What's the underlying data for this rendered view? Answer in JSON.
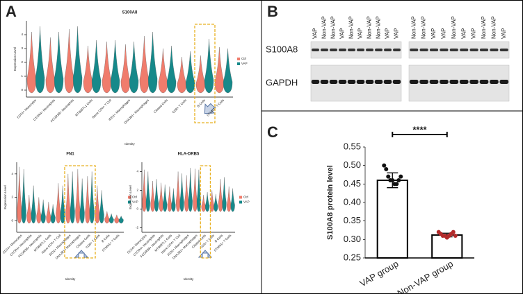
{
  "panel_labels": [
    "A",
    "B",
    "C"
  ],
  "blot": {
    "rows": [
      "S100A8",
      "GAPDH"
    ],
    "lanes": [
      [
        "VAP",
        "Non-VAP",
        "Non-VAP",
        "VAP",
        "Non-VAP",
        "VAP",
        "Non-VAP",
        "Non-VAP",
        "VAP",
        "VAP"
      ],
      [
        "Non-VAP",
        "Non-VAP",
        "VAP",
        "VAP",
        "Non-VAP",
        "VAP",
        "VAP",
        "Non-VAP",
        "Non-VAP",
        "VAP"
      ]
    ]
  },
  "chart_data": [
    {
      "type": "violin",
      "title": "S100A8",
      "xlabel": "Identity",
      "ylabel": "Expression Level",
      "categories": [
        "CD14+ Monocytes",
        "CXCR4+ Neutrophils",
        "FCGR3B+ Neutrophils",
        "MT998TL1 Cells",
        "Naive CD4+ T Cell",
        "IDO1+ Macrophages",
        "DNAJB1+ Macrophages",
        "Ciliated Cells",
        "CD8+ T Cells",
        "B Cells",
        "STMN1+ T Cells"
      ],
      "series": [
        {
          "name": "Ctrl",
          "color": "#f07c6c",
          "values": [
            4.2,
            3.8,
            4.4,
            3.2,
            3.5,
            3.3,
            3.9,
            3.0,
            2.4,
            2.5,
            3.1
          ]
        },
        {
          "name": "VAP",
          "color": "#16898a",
          "values": [
            4.6,
            4.2,
            4.6,
            3.6,
            3.6,
            3.5,
            4.2,
            3.2,
            2.8,
            3.7,
            3.0
          ]
        }
      ],
      "ylim": [
        -0.5,
        5
      ],
      "yticks": [
        0,
        1,
        2,
        3,
        4
      ]
    },
    {
      "type": "violin",
      "title": "FN1",
      "xlabel": "Identity",
      "ylabel": "Expression Level",
      "categories": [
        "CD14+ Monocytes",
        "CXCR4+ Neutrophils",
        "FCGR3B+ Neutrophils",
        "MT998TL1 Cells",
        "Naive CD4+ T Cell",
        "IDO1+ Macrophages",
        "DNAJB1+ Macrophages",
        "Ciliated Cells",
        "CD8+ T Cells",
        "B Cells",
        "STMN1+ T Cells"
      ],
      "series": [
        {
          "name": "Ctrl",
          "color": "#f07c6c",
          "values": [
            4.6,
            2.2,
            2.0,
            1.6,
            3.2,
            4.0,
            4.4,
            3.8,
            3.0,
            0.8,
            0.5
          ]
        },
        {
          "name": "VAP",
          "color": "#16898a",
          "values": [
            4.4,
            3.0,
            1.8,
            1.4,
            3.0,
            4.2,
            3.6,
            4.2,
            2.6,
            0.6,
            0.4
          ]
        }
      ],
      "ylim": [
        -1,
        5
      ],
      "yticks": [
        0,
        2,
        4
      ]
    },
    {
      "type": "violin",
      "title": "HLA-DRB5",
      "xlabel": "Identity",
      "ylabel": "Expression Level",
      "categories": [
        "CD14+ Monocytes",
        "CXCR4+ Neutrophils",
        "FCGR3B+ Neutrophils",
        "MT998TL1 Cells",
        "Naive CD4+ T Cell",
        "IDO1+ Macrophages",
        "DNAJB1+ Macrophages",
        "Ciliated Cells",
        "CD8+ T Cells",
        "B Cells",
        "STMN1+ T Cells"
      ],
      "series": [
        {
          "name": "Ctrl",
          "color": "#f07c6c",
          "values": [
            4.2,
            3.0,
            2.8,
            2.4,
            4.0,
            3.6,
            4.3,
            1.5,
            2.0,
            3.2,
            2.4
          ]
        },
        {
          "name": "VAP",
          "color": "#16898a",
          "values": [
            4.0,
            3.2,
            2.6,
            2.2,
            3.8,
            4.4,
            4.2,
            1.8,
            1.6,
            3.4,
            2.2
          ]
        }
      ],
      "ylim": [
        -2.5,
        5
      ],
      "yticks": [
        -2,
        0,
        2,
        4
      ]
    },
    {
      "type": "bar",
      "ylabel": "S100A8 protein level",
      "significance": "****",
      "categories": [
        "VAP group",
        "Non-VAP group"
      ],
      "values": [
        0.46,
        0.312
      ],
      "errors": [
        0.02,
        0.005
      ],
      "points": [
        [
          0.5,
          0.49,
          0.47,
          0.46,
          0.46,
          0.45,
          0.45,
          0.46,
          0.47
        ],
        [
          0.32,
          0.315,
          0.31,
          0.31,
          0.305,
          0.31,
          0.315,
          0.32,
          0.31
        ]
      ],
      "point_colors": [
        "#111111",
        "#b22a2a"
      ],
      "color": "#ffffff",
      "ylim": [
        0.25,
        0.55
      ],
      "yticks": [
        0.25,
        {
          "value": 0.3,
          "label": "0.30"
        },
        0.35,
        {
          "value": 0.4,
          "label": "0.40"
        },
        0.45,
        {
          "value": 0.5,
          "label": "0.50"
        },
        0.55
      ]
    }
  ]
}
